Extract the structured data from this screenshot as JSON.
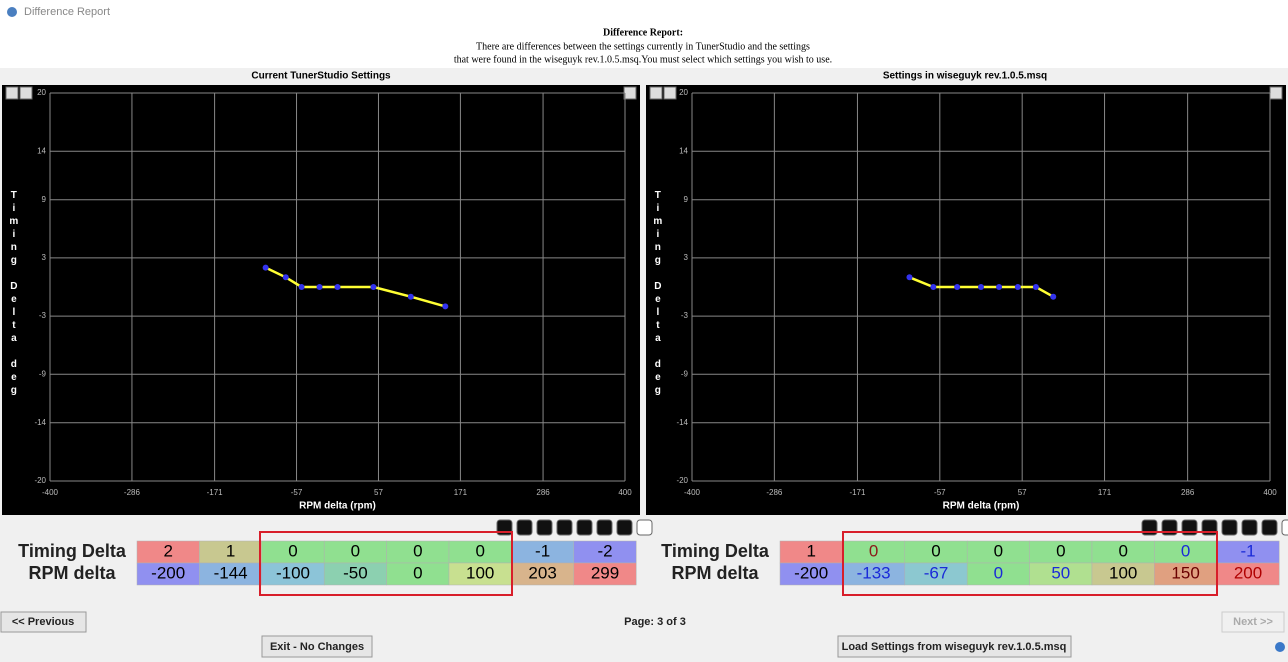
{
  "window": {
    "title": "Difference Report"
  },
  "header": {
    "title": "Difference Report:",
    "lines": [
      "There are differences between the settings currently in TunerStudio and the settings",
      "that were found in the wiseguyk rev.1.0.5.msq.You must select which settings you wish to use."
    ]
  },
  "chart_data": [
    {
      "type": "line",
      "title": "Current TunerStudio Settings",
      "xlabel": "RPM delta (rpm)",
      "ylabel": "Timing Delta deg",
      "x": [
        -100,
        -72,
        -50,
        -25,
        0,
        50,
        102,
        150
      ],
      "values": [
        2,
        1,
        0,
        0,
        0,
        0,
        -1,
        -2
      ],
      "color": "#ffff33",
      "marker_color": "#3333ee",
      "xlim": [
        -400,
        400
      ],
      "xticks": [
        -400,
        -286,
        -171,
        -57,
        57,
        171,
        286,
        400
      ],
      "ylim": [
        -20,
        20
      ],
      "yticks": [
        -20,
        -14,
        -9,
        -3,
        3,
        9,
        14,
        20
      ],
      "grid": true
    },
    {
      "type": "line",
      "title": "Settings in wiseguyk rev.1.0.5.msq",
      "xlabel": "RPM delta (rpm)",
      "ylabel": "Timing Delta deg",
      "x": [
        -99,
        -66,
        -33,
        0,
        25,
        51,
        76,
        100
      ],
      "values": [
        1,
        0,
        0,
        0,
        0,
        0,
        0,
        -1
      ],
      "color": "#ffff33",
      "marker_color": "#3333ee",
      "xlim": [
        -400,
        400
      ],
      "xticks": [
        -400,
        -286,
        -171,
        -57,
        57,
        171,
        286,
        400
      ],
      "ylim": [
        -20,
        20
      ],
      "yticks": [
        -20,
        -14,
        -9,
        -3,
        3,
        9,
        14,
        20
      ],
      "grid": true
    }
  ],
  "tables": [
    {
      "rows": [
        {
          "label": "Timing Delta",
          "cells": [
            2,
            1,
            0,
            0,
            0,
            0,
            -1,
            -2
          ],
          "colors": [
            "#f08888",
            "#c8c890",
            "#90e090",
            "#90e090",
            "#90e090",
            "#90e090",
            "#8cb4e0",
            "#9090f0"
          ],
          "text_colors": [
            "#000",
            "#000",
            "#000",
            "#000",
            "#000",
            "#000",
            "#000",
            "#000"
          ]
        },
        {
          "label": "RPM delta",
          "cells": [
            -200,
            -144,
            -100,
            -50,
            0,
            100,
            203,
            299
          ],
          "colors": [
            "#9090f0",
            "#8cb4e0",
            "#8cc4d8",
            "#8cd0b0",
            "#90e090",
            "#c8e090",
            "#d8b48c",
            "#f08888"
          ],
          "text_colors": [
            "#000",
            "#000",
            "#000",
            "#000",
            "#000",
            "#000",
            "#000",
            "#000"
          ]
        }
      ]
    },
    {
      "rows": [
        {
          "label": "Timing Delta",
          "cells": [
            1,
            0,
            0,
            0,
            0,
            0,
            0,
            -1
          ],
          "colors": [
            "#f08888",
            "#90e090",
            "#90e090",
            "#90e090",
            "#90e090",
            "#90e090",
            "#90e090",
            "#9090f0"
          ],
          "text_colors": [
            "#000",
            "#8b1a1a",
            "#000",
            "#000",
            "#000",
            "#000",
            "#1a2ad8",
            "#1a2ad8"
          ]
        },
        {
          "label": "RPM delta",
          "cells": [
            -200,
            -133,
            -67,
            0,
            50,
            100,
            150,
            200
          ],
          "colors": [
            "#9090f0",
            "#8cb4e0",
            "#8cc8d0",
            "#90e090",
            "#b0e090",
            "#c8c890",
            "#e0a080",
            "#f08888"
          ],
          "text_colors": [
            "#000",
            "#1a2ad8",
            "#1a2ad8",
            "#1a2ad8",
            "#1a2ad8",
            "#000",
            "#6a0000",
            "#b00000"
          ]
        }
      ]
    }
  ],
  "nav": {
    "previous": "<< Previous",
    "page": "Page: 3 of 3",
    "next": "Next >>",
    "exit": "Exit - No Changes",
    "load": "Load Settings from wiseguyk rev.1.0.5.msq"
  }
}
